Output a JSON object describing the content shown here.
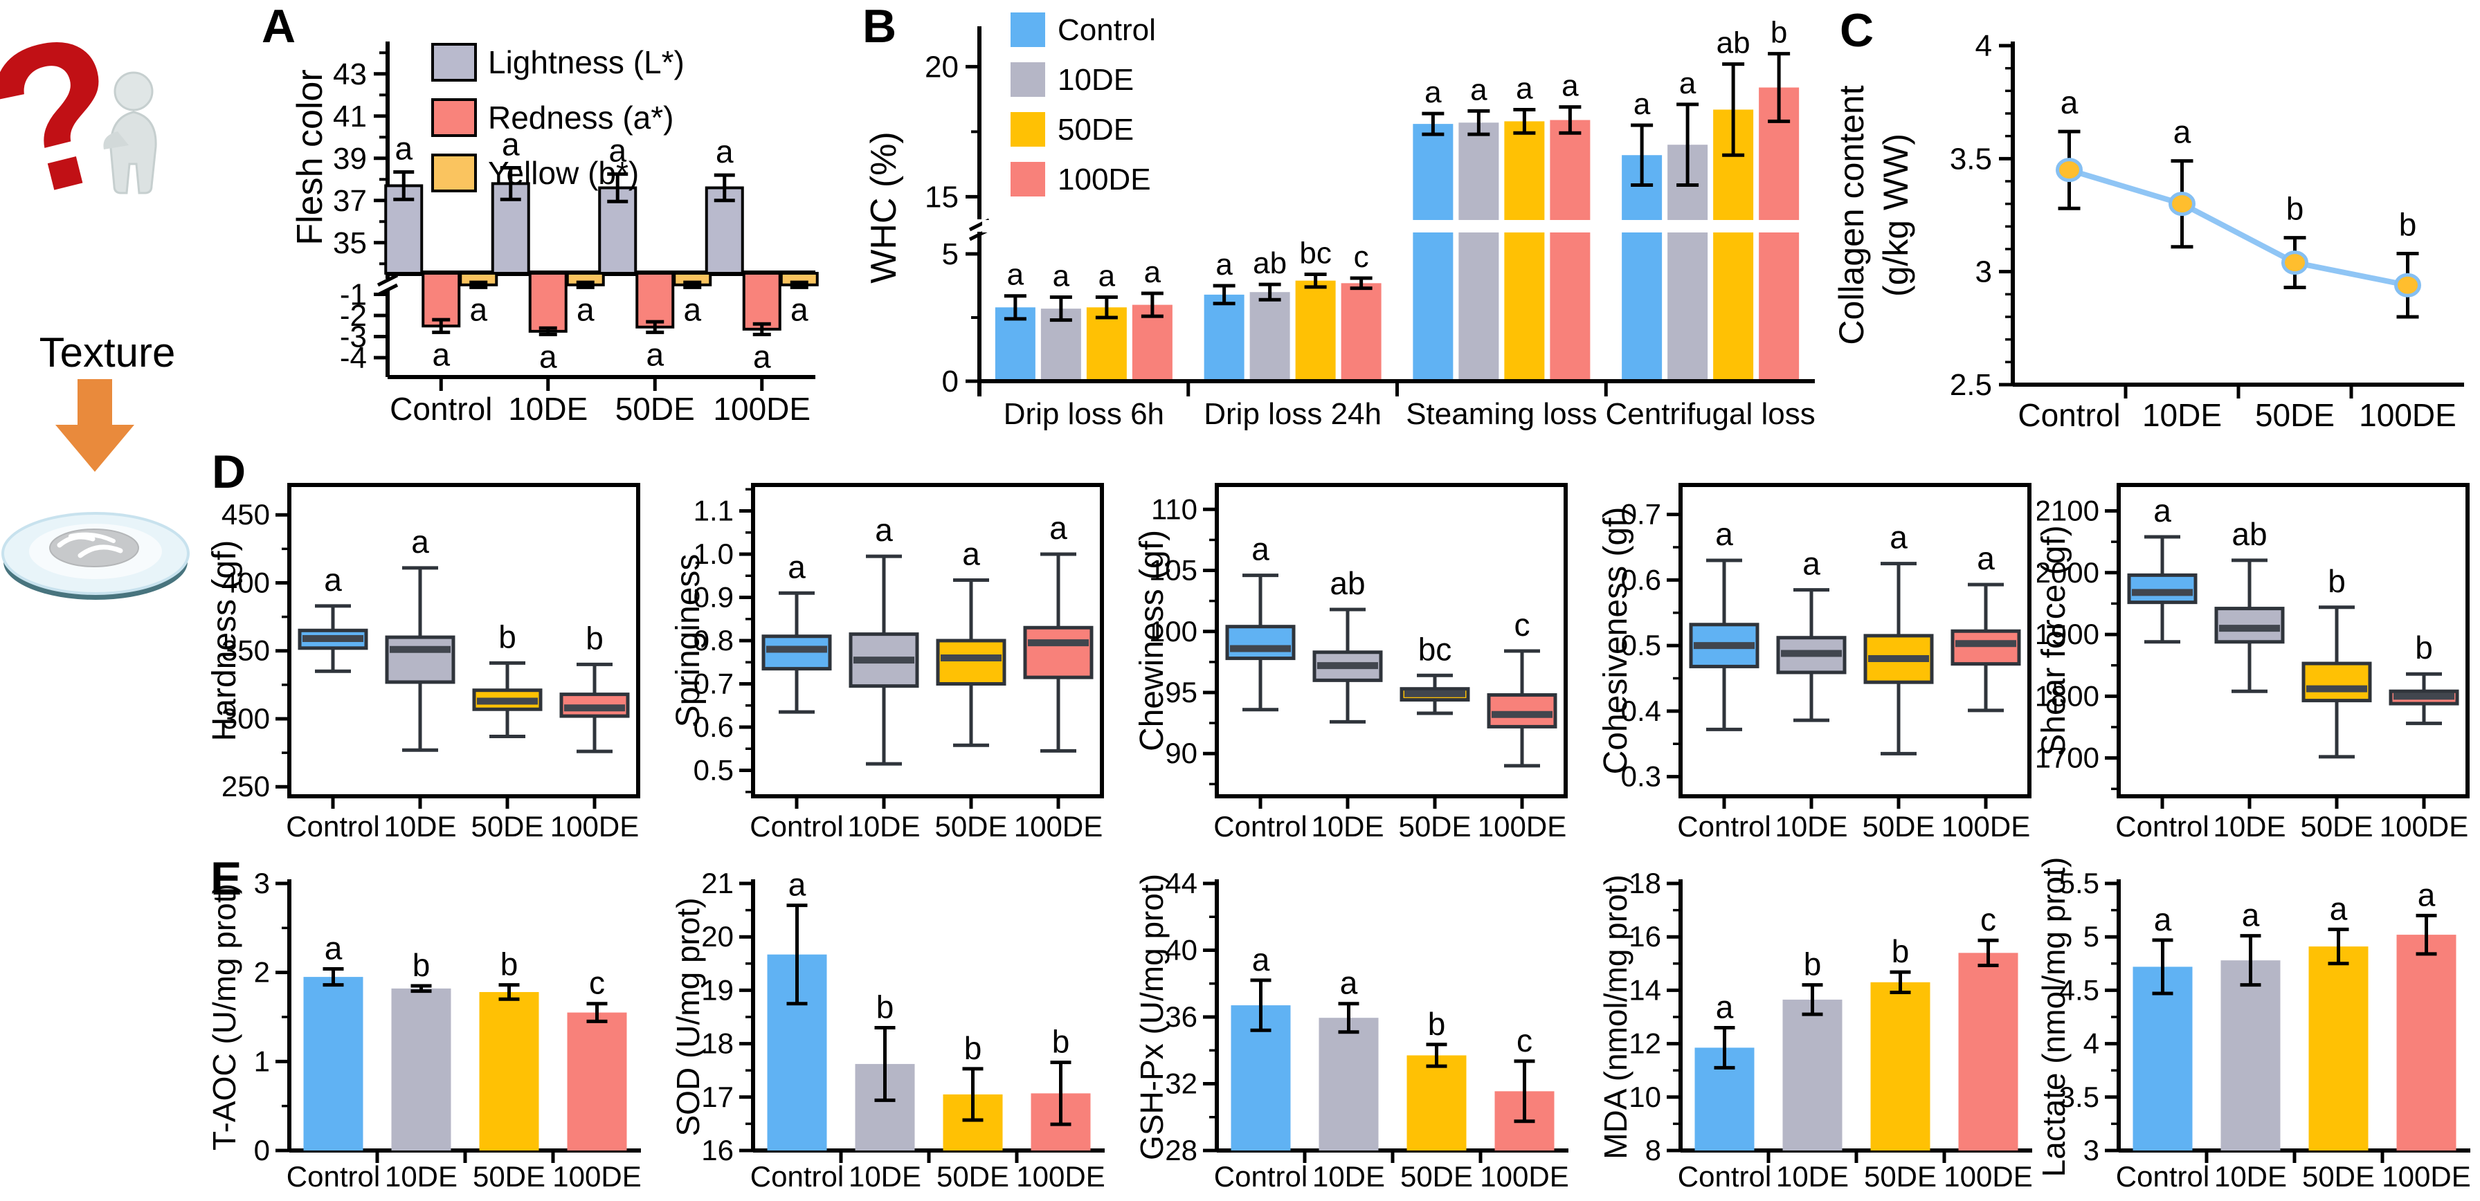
{
  "panels": {
    "a": "A",
    "b": "B",
    "c": "C",
    "d": "D",
    "e": "E"
  },
  "left_column": {
    "texture_label": "Texture"
  },
  "groups": [
    "Control",
    "10DE",
    "50DE",
    "100DE"
  ],
  "palette": {
    "group_colors": [
      "#60B2F3",
      "#B5B6C6",
      "#FFC104",
      "#F8817A"
    ],
    "lightness": "#B9BACD",
    "redness": "#F9837B",
    "yellowness": "#FAC45F",
    "box_border": "#2F343B",
    "median": "#41464E",
    "line": "#8FC5F5",
    "marker_fill": "#FFBE2E",
    "marker_stroke": "#85BFF2",
    "arrow": "#E98A3C",
    "question_mark": "#C11015"
  },
  "chart_data": [
    {
      "id": "flesh_color",
      "type": "bar-broken-axis",
      "ylabel": "Flesh color",
      "categories": [
        "Control",
        "10DE",
        "50DE",
        "100DE"
      ],
      "legend": [
        "Lightness (L*)",
        "Redness (a*)",
        "Yellow (b*)"
      ],
      "series": [
        {
          "name": "Lightness (L*)",
          "color_key": "lightness",
          "values": [
            37.7,
            37.8,
            37.6,
            37.6
          ],
          "errors": [
            0.65,
            0.75,
            0.65,
            0.6
          ],
          "sig": [
            "a",
            "a",
            "a",
            "a"
          ]
        },
        {
          "name": "Redness (a*)",
          "color_key": "redness",
          "values": [
            -2.5,
            -2.75,
            -2.55,
            -2.65
          ],
          "errors": [
            0.3,
            0.15,
            0.25,
            0.25
          ],
          "sig": [
            "a",
            "a",
            "a",
            "a"
          ]
        },
        {
          "name": "Yellow (b*)",
          "color_key": "yellowness",
          "values": [
            -0.55,
            -0.55,
            -0.55,
            -0.55
          ],
          "errors": [
            0.12,
            0.12,
            0.12,
            0.12
          ],
          "sig": [
            "a",
            "a",
            "a",
            "a"
          ]
        }
      ],
      "axis": {
        "top": {
          "min": 33.55,
          "max": 44.5,
          "major_ticks": [
            35,
            37,
            39,
            41,
            43
          ],
          "minor_ticks": [
            34,
            36,
            38,
            40,
            42,
            44
          ]
        },
        "bottom": {
          "min": -4.4,
          "major_ticks": [
            -1,
            -2,
            -3,
            -4
          ]
        }
      }
    },
    {
      "id": "whc",
      "type": "grouped-bar-broken-axis",
      "ylabel": "WHC (%)",
      "categories": [
        "Drip loss 6h",
        "Drip loss 24h",
        "Steaming loss",
        "Centrifugal loss"
      ],
      "series": [
        {
          "name": "Control",
          "values": [
            2.9,
            3.4,
            17.8,
            16.6
          ],
          "errors": [
            0.45,
            0.35,
            0.4,
            1.15
          ],
          "sig": [
            "a",
            "a",
            "a",
            "a"
          ]
        },
        {
          "name": "10DE",
          "values": [
            2.85,
            3.5,
            17.85,
            17.0
          ],
          "errors": [
            0.45,
            0.3,
            0.45,
            1.55
          ],
          "sig": [
            "a",
            "ab",
            "a",
            "a"
          ]
        },
        {
          "name": "50DE",
          "values": [
            2.9,
            3.95,
            17.9,
            18.35
          ],
          "errors": [
            0.4,
            0.25,
            0.45,
            1.75
          ],
          "sig": [
            "a",
            "bc",
            "a",
            "ab"
          ]
        },
        {
          "name": "100DE",
          "values": [
            3.0,
            3.85,
            17.95,
            19.2
          ],
          "errors": [
            0.45,
            0.2,
            0.5,
            1.3
          ],
          "sig": [
            "a",
            "c",
            "a",
            "b"
          ]
        }
      ],
      "axis": {
        "bottom": {
          "min": 0,
          "max": 5.95,
          "major_ticks": [
            0,
            5
          ],
          "minor_ticks": [
            2.5
          ]
        },
        "top": {
          "min": 14,
          "max": 21.5,
          "major_ticks": [
            15,
            20
          ],
          "minor_ticks": [
            17.5
          ]
        }
      }
    },
    {
      "id": "collagen",
      "type": "line",
      "ylabel_lines": [
        "Collagen content",
        "(g/kg WW)"
      ],
      "categories": [
        "Control",
        "10DE",
        "50DE",
        "100DE"
      ],
      "values": [
        3.45,
        3.3,
        3.04,
        2.94
      ],
      "errors": [
        0.17,
        0.19,
        0.11,
        0.14
      ],
      "sig": [
        "a",
        "a",
        "b",
        "b"
      ],
      "ylim": [
        2.5,
        4
      ],
      "major_ticks": [
        2.5,
        3,
        3.5,
        4
      ],
      "minor_step": 0.1
    },
    {
      "id": "hardness",
      "type": "box",
      "ylabel": "Hardness  (gf)",
      "categories": [
        "Control",
        "10DE",
        "50DE",
        "100DE"
      ],
      "ylim": [
        243,
        472
      ],
      "major_ticks": [
        250,
        300,
        350,
        400,
        450
      ],
      "minor_step": 25,
      "boxes": [
        {
          "group": "Control",
          "whisker_low": 335,
          "q1": 352,
          "median": 359,
          "q3": 365,
          "whisker_high": 383,
          "sig": "a"
        },
        {
          "group": "10DE",
          "whisker_low": 277,
          "q1": 327,
          "median": 351,
          "q3": 360,
          "whisker_high": 411,
          "sig": "a"
        },
        {
          "group": "50DE",
          "whisker_low": 287,
          "q1": 307,
          "median": 313,
          "q3": 321,
          "whisker_high": 341,
          "sig": "b"
        },
        {
          "group": "100DE",
          "whisker_low": 276,
          "q1": 302,
          "median": 308,
          "q3": 318,
          "whisker_high": 340,
          "sig": "b"
        }
      ]
    },
    {
      "id": "springiness",
      "type": "box",
      "ylabel": "Springiness",
      "decimals": 1,
      "categories": [
        "Control",
        "10DE",
        "50DE",
        "100DE"
      ],
      "ylim": [
        0.44,
        1.16
      ],
      "major_ticks": [
        0.5,
        0.6,
        0.7,
        0.8,
        0.9,
        1.0,
        1.1
      ],
      "minor_step": 0.05,
      "boxes": [
        {
          "group": "Control",
          "whisker_low": 0.635,
          "q1": 0.735,
          "median": 0.78,
          "q3": 0.81,
          "whisker_high": 0.91,
          "sig": "a"
        },
        {
          "group": "10DE",
          "whisker_low": 0.515,
          "q1": 0.695,
          "median": 0.755,
          "q3": 0.815,
          "whisker_high": 0.995,
          "sig": "a"
        },
        {
          "group": "50DE",
          "whisker_low": 0.558,
          "q1": 0.7,
          "median": 0.76,
          "q3": 0.8,
          "whisker_high": 0.94,
          "sig": "a"
        },
        {
          "group": "100DE",
          "whisker_low": 0.545,
          "q1": 0.715,
          "median": 0.795,
          "q3": 0.83,
          "whisker_high": 1.0,
          "sig": "a"
        }
      ]
    },
    {
      "id": "chewiness",
      "type": "box",
      "ylabel": "Chewiness  (gf)",
      "categories": [
        "Control",
        "10DE",
        "50DE",
        "100DE"
      ],
      "ylim": [
        86.5,
        112
      ],
      "major_ticks": [
        90,
        95,
        100,
        105,
        110
      ],
      "minor_step": 2.5,
      "boxes": [
        {
          "group": "Control",
          "whisker_low": 93.6,
          "q1": 97.8,
          "median": 98.6,
          "q3": 100.4,
          "whisker_high": 104.6,
          "sig": "a"
        },
        {
          "group": "10DE",
          "whisker_low": 92.6,
          "q1": 96.0,
          "median": 97.2,
          "q3": 98.3,
          "whisker_high": 101.8,
          "sig": "ab"
        },
        {
          "group": "50DE",
          "whisker_low": 93.3,
          "q1": 94.4,
          "median": 94.9,
          "q3": 95.3,
          "whisker_high": 96.4,
          "sig": "bc"
        },
        {
          "group": "100DE",
          "whisker_low": 89.0,
          "q1": 92.2,
          "median": 93.2,
          "q3": 94.8,
          "whisker_high": 98.4,
          "sig": "c"
        }
      ]
    },
    {
      "id": "cohesiveness",
      "type": "box",
      "ylabel": "Cohesiveness  (gf)",
      "decimals": 1,
      "categories": [
        "Control",
        "10DE",
        "50DE",
        "100DE"
      ],
      "ylim": [
        0.27,
        0.745
      ],
      "major_ticks": [
        0.3,
        0.4,
        0.5,
        0.6,
        0.7
      ],
      "minor_step": 0.05,
      "boxes": [
        {
          "group": "Control",
          "whisker_low": 0.372,
          "q1": 0.468,
          "median": 0.5,
          "q3": 0.532,
          "whisker_high": 0.63,
          "sig": "a"
        },
        {
          "group": "10DE",
          "whisker_low": 0.386,
          "q1": 0.459,
          "median": 0.488,
          "q3": 0.512,
          "whisker_high": 0.585,
          "sig": "a"
        },
        {
          "group": "50DE",
          "whisker_low": 0.335,
          "q1": 0.444,
          "median": 0.48,
          "q3": 0.515,
          "whisker_high": 0.625,
          "sig": "a"
        },
        {
          "group": "100DE",
          "whisker_low": 0.401,
          "q1": 0.472,
          "median": 0.503,
          "q3": 0.522,
          "whisker_high": 0.593,
          "sig": "a"
        }
      ]
    },
    {
      "id": "shear_force",
      "type": "box",
      "ylabel": "Shear force (gf)",
      "categories": [
        "Control",
        "10DE",
        "50DE",
        "100DE"
      ],
      "ylim": [
        1638,
        2142
      ],
      "major_ticks": [
        1700,
        1800,
        1900,
        2000,
        2100
      ],
      "minor_step": 50,
      "boxes": [
        {
          "group": "Control",
          "whisker_low": 1888,
          "q1": 1952,
          "median": 1968,
          "q3": 1996,
          "whisker_high": 2058,
          "sig": "a"
        },
        {
          "group": "10DE",
          "whisker_low": 1808,
          "q1": 1888,
          "median": 1910,
          "q3": 1942,
          "whisker_high": 2020,
          "sig": "ab"
        },
        {
          "group": "50DE",
          "whisker_low": 1702,
          "q1": 1793,
          "median": 1812,
          "q3": 1853,
          "whisker_high": 1944,
          "sig": "b"
        },
        {
          "group": "100DE",
          "whisker_low": 1756,
          "q1": 1788,
          "median": 1800,
          "q3": 1808,
          "whisker_high": 1836,
          "sig": "b"
        }
      ]
    },
    {
      "id": "t_aoc",
      "type": "bar",
      "ylabel": "T-AOC (U/mg prot)",
      "categories": [
        "Control",
        "10DE",
        "50DE",
        "100DE"
      ],
      "values": [
        1.95,
        1.82,
        1.78,
        1.55
      ],
      "errors": [
        0.09,
        0.03,
        0.08,
        0.1
      ],
      "sig": [
        "a",
        "b",
        "b",
        "c"
      ],
      "ylim": [
        0,
        3
      ],
      "major_ticks": [
        0,
        1,
        2,
        3
      ],
      "minor_step": 0.5
    },
    {
      "id": "sod",
      "type": "bar",
      "ylabel": "SOD (U/mg prot)",
      "categories": [
        "Control",
        "10DE",
        "50DE",
        "100DE"
      ],
      "values": [
        19.67,
        17.62,
        17.05,
        17.07
      ],
      "errors": [
        0.92,
        0.68,
        0.48,
        0.58
      ],
      "sig": [
        "a",
        "b",
        "b",
        "b"
      ],
      "ylim": [
        16,
        21
      ],
      "major_ticks": [
        16,
        17,
        18,
        19,
        20,
        21
      ],
      "minor_step": 0.5
    },
    {
      "id": "gsh_px",
      "type": "bar",
      "ylabel": "GSH-Px (U/mg prot)",
      "categories": [
        "Control",
        "10DE",
        "50DE",
        "100DE"
      ],
      "values": [
        36.7,
        35.95,
        33.7,
        31.55
      ],
      "errors": [
        1.5,
        0.85,
        0.65,
        1.8
      ],
      "sig": [
        "a",
        "a",
        "b",
        "c"
      ],
      "ylim": [
        28,
        44
      ],
      "major_ticks": [
        28,
        32,
        36,
        40,
        44
      ],
      "minor_step": 2
    },
    {
      "id": "mda",
      "type": "bar",
      "ylabel": "MDA (nmol/mg prot)",
      "categories": [
        "Control",
        "10DE",
        "50DE",
        "100DE"
      ],
      "values": [
        11.85,
        13.65,
        14.3,
        15.4
      ],
      "errors": [
        0.75,
        0.55,
        0.38,
        0.47
      ],
      "sig": [
        "a",
        "b",
        "b",
        "c"
      ],
      "ylim": [
        8,
        18
      ],
      "major_ticks": [
        8,
        10,
        12,
        14,
        16,
        18
      ],
      "minor_step": 1
    },
    {
      "id": "lactate",
      "type": "bar",
      "ylabel": "Lactate (nmol/mg prot)",
      "categories": [
        "Control",
        "10DE",
        "50DE",
        "100DE"
      ],
      "values": [
        4.72,
        4.78,
        4.91,
        5.02
      ],
      "errors": [
        0.25,
        0.23,
        0.16,
        0.18
      ],
      "sig": [
        "a",
        "a",
        "a",
        "a"
      ],
      "ylim": [
        3,
        5.5
      ],
      "major_ticks": [
        3,
        3.5,
        4,
        4.5,
        5,
        5.5
      ],
      "minor_step": 0.25
    }
  ]
}
